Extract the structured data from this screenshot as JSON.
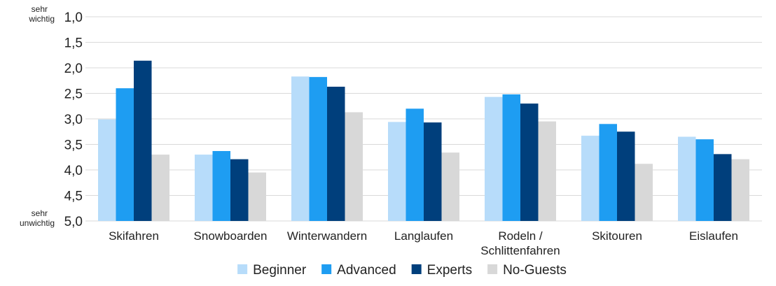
{
  "chart_data": {
    "type": "bar",
    "title": "",
    "xlabel": "",
    "ylabel": "",
    "y_inverted": true,
    "ylim": [
      1.0,
      5.0
    ],
    "y_ticks": [
      "1,0",
      "1,5",
      "2,0",
      "2,5",
      "3,0",
      "3,5",
      "4,0",
      "4,5",
      "5,0"
    ],
    "y_top_label": [
      "sehr",
      "wichtig"
    ],
    "y_bottom_label": [
      "sehr",
      "unwichtig"
    ],
    "grid": true,
    "legend_position": "bottom",
    "categories": [
      [
        "Skifahren"
      ],
      [
        "Snowboarden"
      ],
      [
        "Winterwandern"
      ],
      [
        "Langlaufen"
      ],
      [
        "Rodeln /",
        "Schlittenfahren"
      ],
      [
        "Skitouren"
      ],
      [
        "Eislaufen"
      ]
    ],
    "series": [
      {
        "name": "Beginner",
        "color": "#b7dcfa",
        "values": [
          3.01,
          3.7,
          2.17,
          3.06,
          2.57,
          3.33,
          3.35
        ]
      },
      {
        "name": "Advanced",
        "color": "#1e9df2",
        "values": [
          2.4,
          3.63,
          2.18,
          2.8,
          2.52,
          3.1,
          3.4
        ]
      },
      {
        "name": "Experts",
        "color": "#003f7c",
        "values": [
          1.86,
          3.79,
          2.37,
          3.07,
          2.7,
          3.25,
          3.69
        ]
      },
      {
        "name": "No-Guests",
        "color": "#d8d8d8",
        "values": [
          3.7,
          4.05,
          2.87,
          3.66,
          3.05,
          3.88,
          3.79
        ]
      }
    ]
  }
}
